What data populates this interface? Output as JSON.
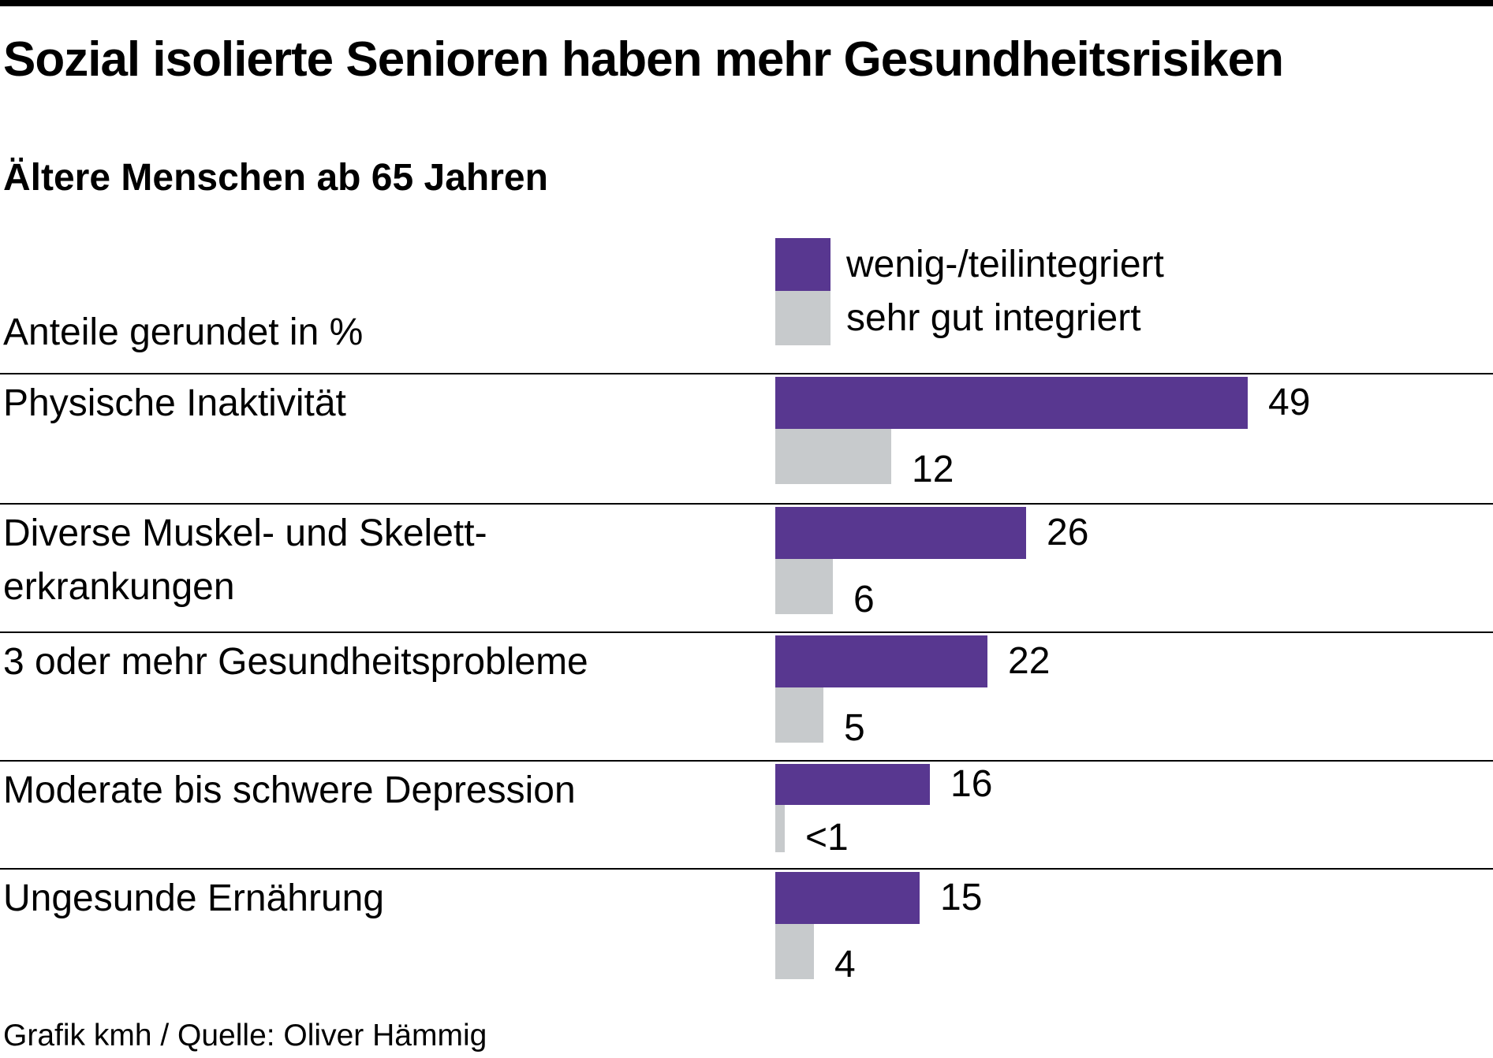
{
  "header": {
    "title": "Sozial isolierte Senioren haben mehr Gesundheitsrisiken",
    "subtitle": "Ältere Menschen ab 65 Jahren",
    "unit_note": "Anteile gerundet in %"
  },
  "legend": {
    "items": [
      {
        "label": "wenig-/teilintegriert",
        "color": "#583790"
      },
      {
        "label": "sehr gut integriert",
        "color": "#c7cacc"
      }
    ]
  },
  "colors": {
    "purple": "#583790",
    "gray": "#c7cacc",
    "top_accent_bar": "#000000",
    "divider": "#000000"
  },
  "chart_data": {
    "type": "bar",
    "orientation": "horizontal",
    "unit": "%",
    "title": "Sozial isolierte Senioren haben mehr Gesundheitsrisiken",
    "subtitle": "Ältere Menschen ab 65 Jahren",
    "note": "Anteile gerundet in %",
    "categories": [
      "Physische Inaktivität",
      "Diverse Muskel- und Skeletterkrankungen",
      "3 oder mehr Gesundheitsprobleme",
      "Moderate bis schwere Depression",
      "Ungesunde Ernährung"
    ],
    "category_label_lines": [
      [
        "Physische Inaktivität"
      ],
      [
        "Diverse Muskel- und Skelett-",
        "erkrankungen"
      ],
      [
        "3 oder mehr Gesundheitsprobleme"
      ],
      [
        "Moderate bis schwere Depression"
      ],
      [
        "Ungesunde Ernährung"
      ]
    ],
    "series": [
      {
        "name": "wenig-/teilintegriert",
        "color": "#583790",
        "values": [
          49,
          26,
          22,
          16,
          15
        ],
        "value_labels": [
          "49",
          "26",
          "22",
          "16",
          "15"
        ]
      },
      {
        "name": "sehr gut integriert",
        "color": "#c7cacc",
        "values": [
          12,
          6,
          5,
          0.5,
          4
        ],
        "value_labels": [
          "12",
          "6",
          "5",
          "<1",
          "4"
        ]
      }
    ],
    "xlim": [
      0,
      52
    ],
    "grid": false,
    "legend_position": "top"
  },
  "footer": {
    "credit": "Grafik kmh / Quelle: Oliver Hämmig"
  }
}
